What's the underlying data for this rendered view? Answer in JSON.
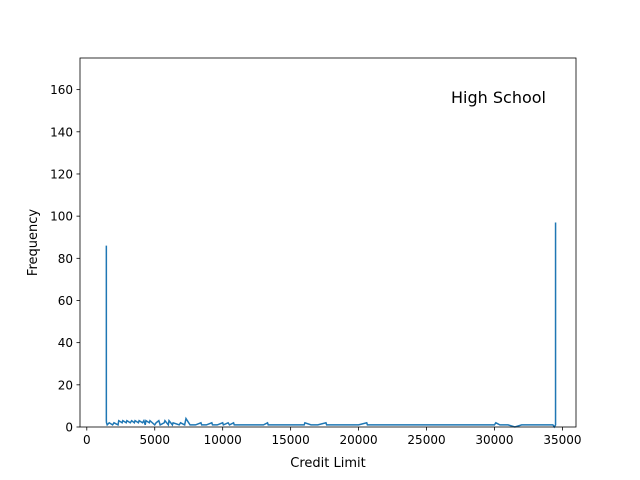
{
  "colors": {
    "series": "#1f77b4",
    "axes": "#000000",
    "background": "#ffffff"
  },
  "chart_data": {
    "type": "line",
    "title": "",
    "annotation": "High School",
    "annotation_position": "top-right",
    "xlabel": "Credit Limit",
    "ylabel": "Frequency",
    "xlim": [
      -500,
      36000
    ],
    "ylim": [
      0,
      175
    ],
    "xticks": [
      0,
      5000,
      10000,
      15000,
      20000,
      25000,
      30000,
      35000
    ],
    "yticks": [
      0,
      20,
      40,
      60,
      80,
      100,
      120,
      140,
      160
    ],
    "grid": false,
    "legend": "none",
    "x": [
      1438,
      1439,
      1450,
      1500,
      1650,
      1900,
      2000,
      2300,
      2350,
      2600,
      2650,
      2900,
      2950,
      3200,
      3300,
      3500,
      3550,
      3800,
      3850,
      4100,
      4200,
      4300,
      4350,
      4600,
      4650,
      5000,
      5100,
      5300,
      5400,
      5700,
      5750,
      6000,
      6050,
      6300,
      6350,
      6800,
      6900,
      7200,
      7300,
      7600,
      7700,
      8000,
      8400,
      8450,
      8800,
      9200,
      9250,
      9600,
      10000,
      10050,
      10400,
      10500,
      10800,
      10850,
      11200,
      11600,
      12000,
      12500,
      13000,
      13300,
      13350,
      13800,
      14200,
      15000,
      15500,
      16000,
      16050,
      16500,
      17000,
      17600,
      17650,
      18000,
      19000,
      20000,
      20600,
      20650,
      21000,
      22000,
      23000,
      24000,
      25000,
      26000,
      27000,
      28000,
      29000,
      29500,
      30000,
      30100,
      30400,
      31000,
      31500,
      32000,
      32500,
      33000,
      33500,
      34000,
      34300,
      34400,
      34495,
      34496
    ],
    "y": [
      86,
      3,
      2,
      1,
      2,
      1,
      2,
      1,
      3,
      2,
      3,
      2,
      3,
      2,
      3,
      2,
      3,
      2,
      3,
      2,
      3,
      1,
      3,
      2,
      3,
      1,
      2,
      3,
      1,
      2,
      3,
      1,
      3,
      1,
      2,
      1,
      2,
      1,
      4,
      1,
      1,
      1,
      2,
      1,
      1,
      2,
      1,
      1,
      2,
      1,
      2,
      1,
      2,
      1,
      1,
      1,
      1,
      1,
      1,
      2,
      1,
      1,
      1,
      1,
      1,
      1,
      2,
      1,
      1,
      2,
      1,
      1,
      1,
      1,
      2,
      1,
      1,
      1,
      1,
      1,
      1,
      1,
      1,
      1,
      1,
      1,
      1,
      2,
      1,
      1,
      0,
      1,
      1,
      1,
      1,
      1,
      1,
      0,
      1,
      97
    ]
  }
}
